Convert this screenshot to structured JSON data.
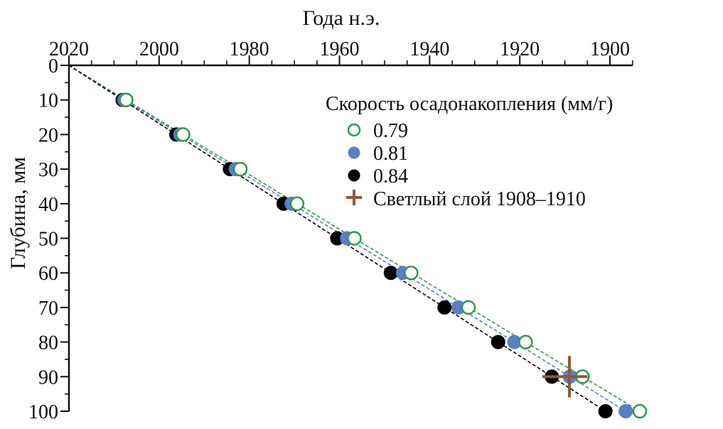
{
  "chart_data": {
    "type": "scatter",
    "title": "",
    "xlabel": "Года н.э.",
    "ylabel": "Глубина, мм",
    "xaxis_position": "top",
    "xlim": [
      2020,
      1895
    ],
    "ylim": [
      0,
      100
    ],
    "x_reversed": true,
    "y_reversed": true,
    "xticks": [
      2020,
      2000,
      1980,
      1960,
      1940,
      1920,
      1900
    ],
    "yticks": [
      0,
      10,
      20,
      30,
      40,
      50,
      60,
      70,
      80,
      90,
      100
    ],
    "grid": false,
    "legend": {
      "title": "Скорость осадонакопления (мм/г)",
      "placement": "top-right"
    },
    "series": [
      {
        "name": "0.79",
        "marker": "open-circle",
        "color": "#2e9a4a",
        "line": "dashed",
        "x": [
          2007.3,
          1994.7,
          1982.0,
          1969.4,
          1956.7,
          1944.1,
          1931.4,
          1918.7,
          1906.1,
          1893.4
        ],
        "y": [
          10,
          20,
          30,
          40,
          50,
          60,
          70,
          80,
          90,
          100
        ]
      },
      {
        "name": "0.81",
        "marker": "filled-circle",
        "color": "#5b7fc4",
        "line": "dashed",
        "x": [
          2007.7,
          1995.3,
          1983.0,
          1970.6,
          1958.3,
          1945.9,
          1933.6,
          1921.2,
          1908.9,
          1896.5
        ],
        "y": [
          10,
          20,
          30,
          40,
          50,
          60,
          70,
          80,
          90,
          100
        ]
      },
      {
        "name": "0.84",
        "marker": "filled-circle",
        "color": "#000000",
        "line": "dashed",
        "x": [
          2008.1,
          1996.2,
          1984.3,
          1972.4,
          1960.5,
          1948.6,
          1936.7,
          1924.8,
          1912.9,
          1901.0
        ],
        "y": [
          10,
          20,
          30,
          40,
          50,
          60,
          70,
          80,
          90,
          100
        ]
      },
      {
        "name": "Светлый слой 1908–1910",
        "marker": "plus",
        "color": "#8b5a3c",
        "x": [
          1909
        ],
        "y": [
          90
        ],
        "x_range": [
          1905,
          1915
        ],
        "y_range": [
          84,
          96
        ]
      }
    ],
    "line_origin": {
      "x": 2020,
      "y": 0
    }
  }
}
